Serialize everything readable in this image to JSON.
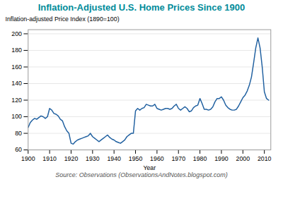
{
  "chart_data": {
    "type": "line",
    "title": "Inflation-Adjusted U.S. Home Prices Since 1900",
    "title_color": "#008B9A",
    "xlabel": "Year",
    "ylabel": "Inflation-adjusted Price Index (1890=100)",
    "source": "Source: Observations (ObservationsAndNotes.blogspot.com)",
    "color": "#2060A0",
    "grid": true,
    "xlim": [
      1900,
      2013
    ],
    "ylim": [
      60,
      205
    ],
    "xticks": [
      1900,
      1910,
      1920,
      1930,
      1940,
      1950,
      1960,
      1970,
      1980,
      1990,
      2000,
      2010
    ],
    "yticks": [
      60,
      80,
      100,
      120,
      140,
      160,
      180,
      200
    ],
    "x": [
      1900,
      1901,
      1902,
      1903,
      1904,
      1905,
      1906,
      1907,
      1908,
      1909,
      1910,
      1911,
      1912,
      1913,
      1914,
      1915,
      1916,
      1917,
      1918,
      1919,
      1920,
      1921,
      1922,
      1923,
      1924,
      1925,
      1926,
      1927,
      1928,
      1929,
      1930,
      1931,
      1932,
      1933,
      1934,
      1935,
      1936,
      1937,
      1938,
      1939,
      1940,
      1941,
      1942,
      1943,
      1944,
      1945,
      1946,
      1947,
      1948,
      1949,
      1950,
      1951,
      1952,
      1953,
      1954,
      1955,
      1956,
      1957,
      1958,
      1959,
      1960,
      1961,
      1962,
      1963,
      1964,
      1965,
      1966,
      1967,
      1968,
      1969,
      1970,
      1971,
      1972,
      1973,
      1974,
      1975,
      1976,
      1977,
      1978,
      1979,
      1980,
      1981,
      1982,
      1983,
      1984,
      1985,
      1986,
      1987,
      1988,
      1989,
      1990,
      1991,
      1992,
      1993,
      1994,
      1995,
      1996,
      1997,
      1998,
      1999,
      2000,
      2001,
      2002,
      2003,
      2004,
      2005,
      2006,
      2007,
      2008,
      2009,
      2010,
      2011,
      2012
    ],
    "values": [
      87,
      93,
      96,
      98,
      97,
      99,
      101,
      100,
      98,
      100,
      110,
      108,
      104,
      103,
      101,
      97,
      95,
      88,
      83,
      80,
      68,
      67,
      70,
      72,
      73,
      74,
      75,
      76,
      77,
      80,
      76,
      74,
      72,
      70,
      72,
      74,
      76,
      78,
      75,
      73,
      72,
      70,
      69,
      68,
      70,
      72,
      76,
      78,
      80,
      80,
      107,
      110,
      108,
      110,
      111,
      115,
      114,
      113,
      113,
      115,
      110,
      109,
      108,
      109,
      110,
      110,
      109,
      110,
      113,
      115,
      110,
      108,
      110,
      112,
      110,
      106,
      107,
      111,
      113,
      114,
      122,
      116,
      109,
      109,
      108,
      109,
      112,
      118,
      122,
      122,
      124,
      120,
      114,
      111,
      109,
      108,
      108,
      109,
      113,
      118,
      123,
      126,
      131,
      138,
      148,
      165,
      183,
      195,
      183,
      160,
      130,
      122,
      120
    ]
  }
}
